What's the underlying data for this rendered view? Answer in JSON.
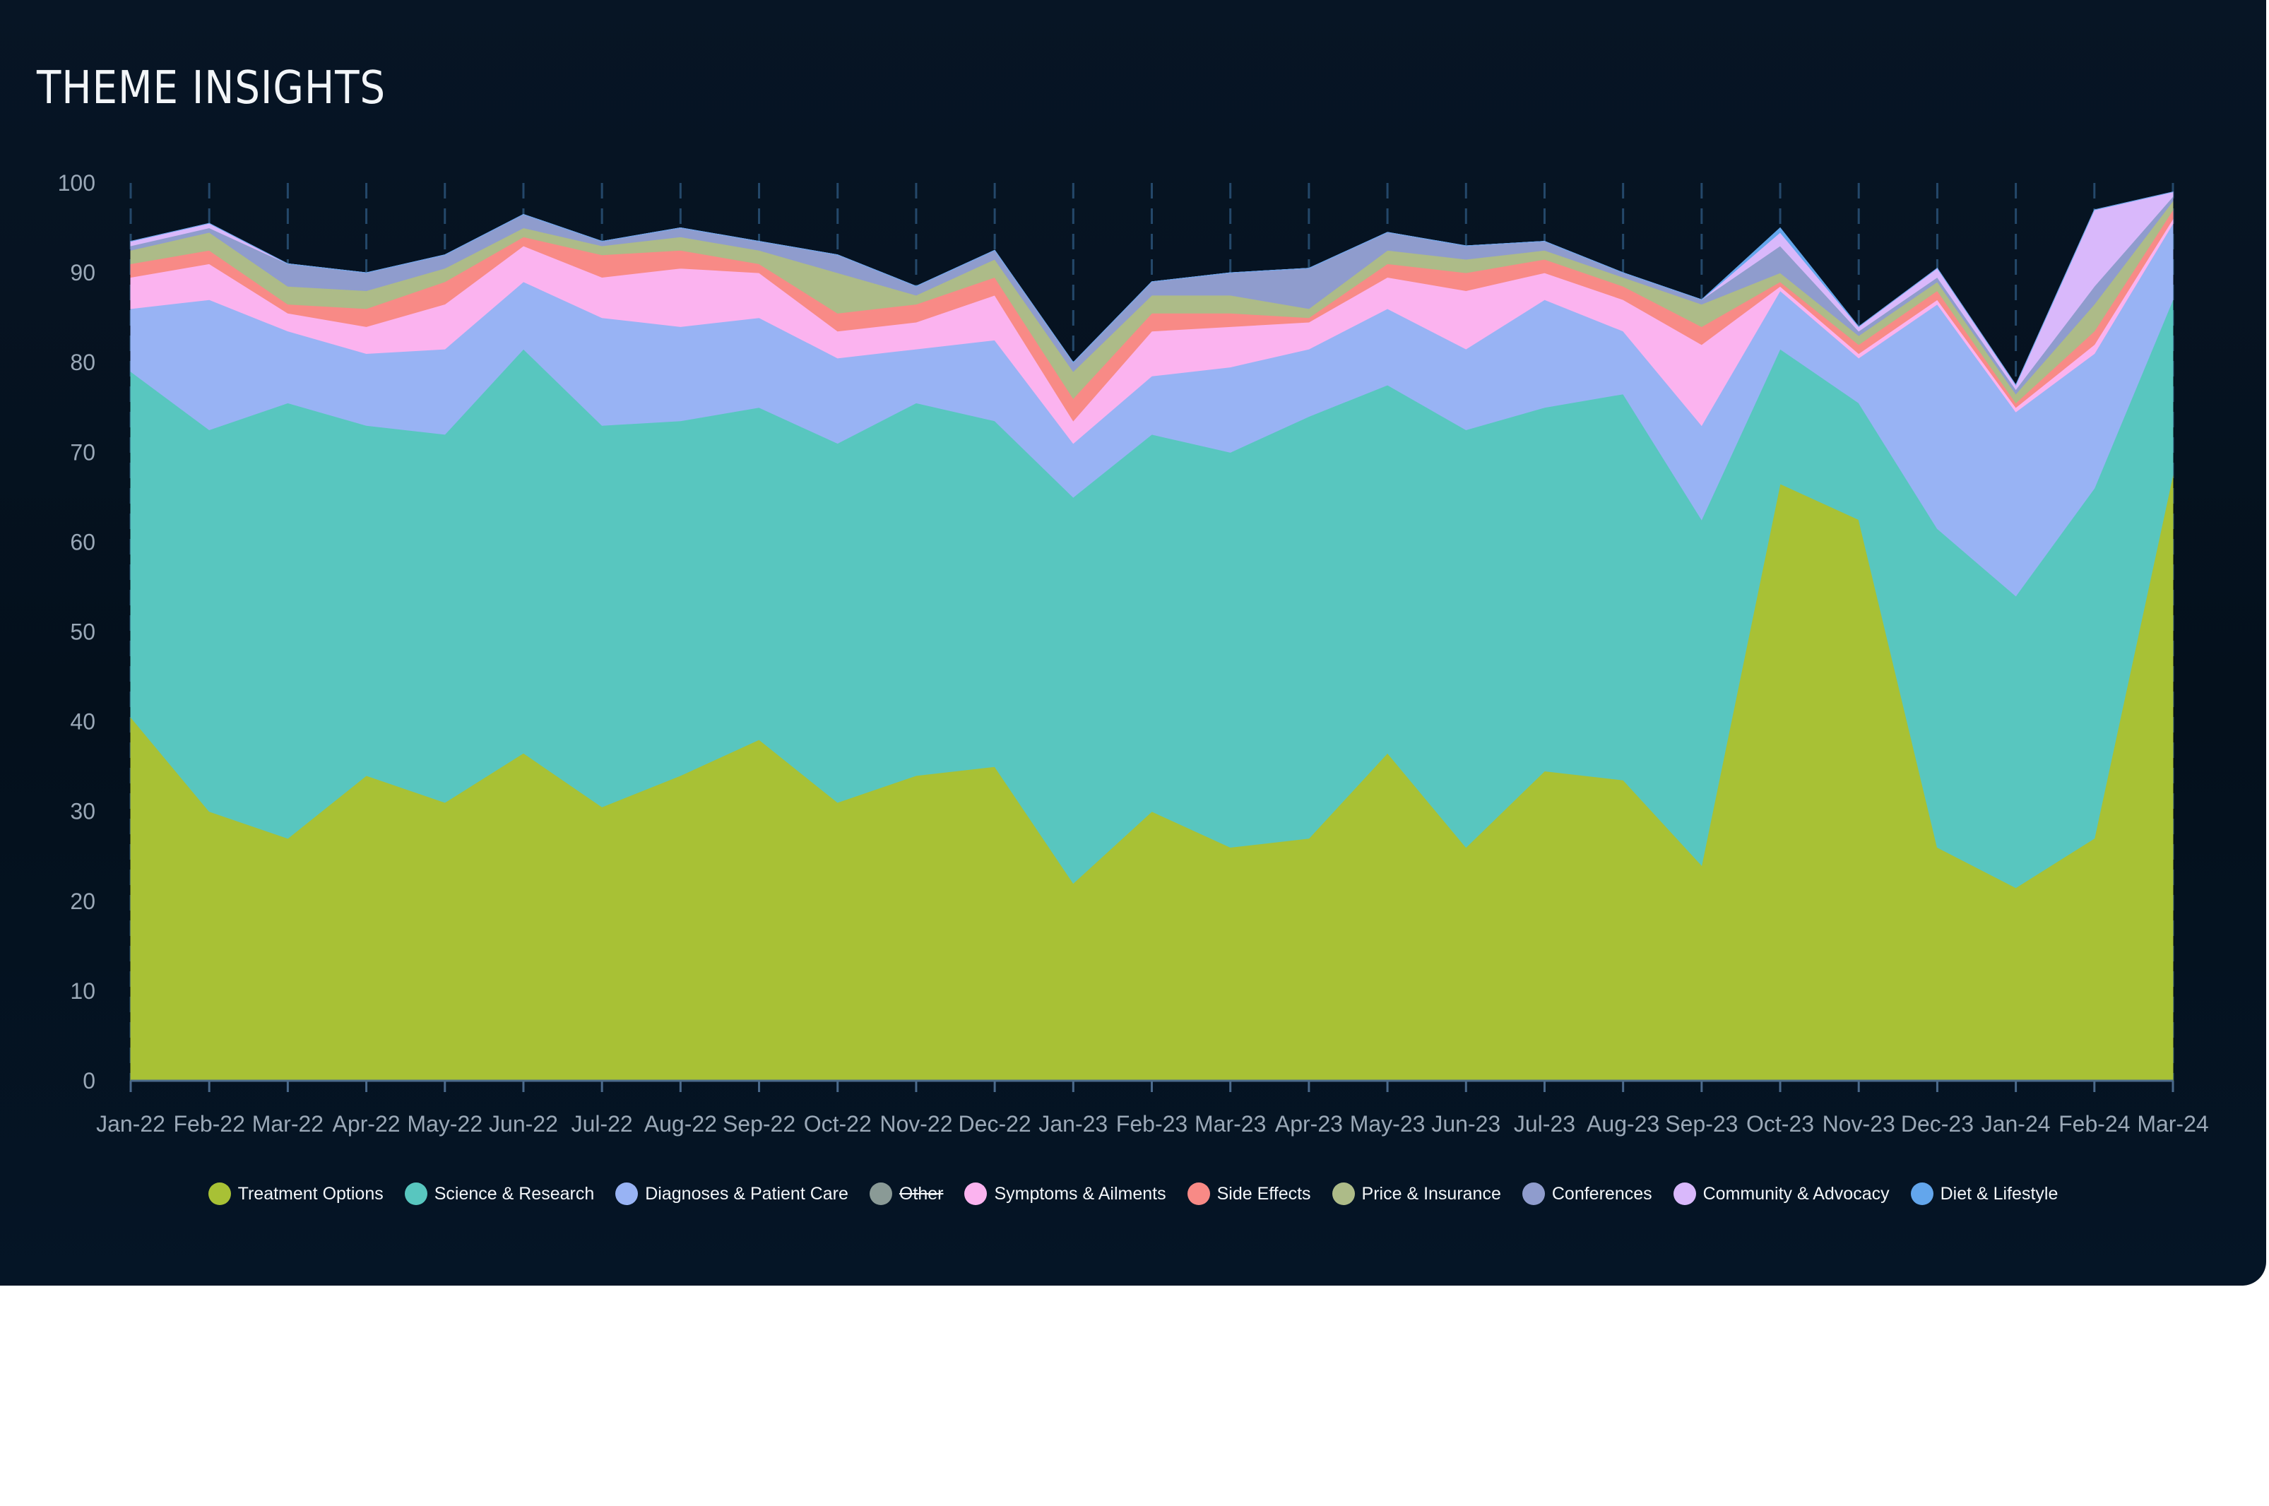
{
  "header": {
    "title": "THEME INSIGHTS"
  },
  "colors": {
    "background": "#04101c",
    "grid": "#24486a",
    "tick_text": "#9aa8b7",
    "legend_text": "#f2f5f8"
  },
  "chart_data": {
    "type": "area",
    "stacked": true,
    "title": "THEME INSIGHTS",
    "xlabel": "",
    "ylabel": "",
    "ylim": [
      0,
      100
    ],
    "yticks": [
      0,
      10,
      20,
      30,
      40,
      50,
      60,
      70,
      80,
      90,
      100
    ],
    "grid": "vertical dashed lines at each month",
    "legend_position": "bottom-center",
    "categories": [
      "Jan-22",
      "Feb-22",
      "Mar-22",
      "Apr-22",
      "May-22",
      "Jun-22",
      "Jul-22",
      "Aug-22",
      "Sep-22",
      "Oct-22",
      "Nov-22",
      "Dec-22",
      "Jan-23",
      "Feb-23",
      "Mar-23",
      "Apr-23",
      "May-23",
      "Jun-23",
      "Jul-23",
      "Aug-23",
      "Sep-23",
      "Oct-23",
      "Nov-23",
      "Dec-23",
      "Jan-24",
      "Feb-24",
      "Mar-24"
    ],
    "series": [
      {
        "name": "Treatment Options",
        "color": "#a8c135",
        "visible": true,
        "values": [
          40.5,
          30,
          27,
          34,
          31,
          36.5,
          30.5,
          34,
          38,
          31,
          34,
          35,
          22,
          30,
          26,
          27,
          36.5,
          26,
          34.5,
          33.5,
          24,
          66.5,
          62.5,
          26,
          21.5,
          27,
          67.5
        ]
      },
      {
        "name": "Science & Research",
        "color": "#58c6bf",
        "visible": true,
        "values": [
          38.5,
          42.5,
          48.5,
          39,
          41,
          45,
          42.5,
          39.5,
          37,
          40,
          41.5,
          38.5,
          43,
          42,
          44,
          47,
          41,
          46.5,
          40.5,
          43,
          38.5,
          15,
          13,
          35.5,
          32.5,
          39,
          19.5
        ]
      },
      {
        "name": "Diagnoses & Patient Care",
        "color": "#98b3f4",
        "visible": true,
        "values": [
          7,
          14.5,
          8,
          8,
          9.5,
          7.5,
          12,
          10.5,
          10,
          9.5,
          6,
          9,
          6,
          6.5,
          9.5,
          7.5,
          8.5,
          9,
          12,
          7,
          10.5,
          6.5,
          5,
          25,
          20.5,
          15,
          8.5
        ]
      },
      {
        "name": "Other",
        "color": "#8a9a96",
        "visible": false,
        "values": [
          0,
          0,
          0,
          0,
          0,
          0,
          0,
          0,
          0,
          0,
          0,
          0,
          0,
          0,
          0,
          0,
          0,
          0,
          0,
          0,
          0,
          0,
          0,
          0,
          0,
          0,
          0
        ]
      },
      {
        "name": "Symptoms & Ailments",
        "color": "#fbb3ef",
        "visible": true,
        "values": [
          3.5,
          4,
          2,
          3,
          5,
          4,
          4.5,
          6.5,
          5,
          3,
          3,
          5,
          2.5,
          5,
          4.5,
          3,
          3.5,
          6.5,
          3,
          3.5,
          9,
          0.5,
          0.5,
          0.5,
          0.5,
          1,
          0.5
        ]
      },
      {
        "name": "Side Effects",
        "color": "#f88a86",
        "visible": true,
        "values": [
          1.5,
          1.5,
          1,
          2,
          2.5,
          1,
          2.5,
          2,
          1,
          2,
          2,
          2,
          2.5,
          2,
          1.5,
          0.5,
          1.5,
          2,
          1.5,
          1.5,
          2,
          0.5,
          1,
          1,
          0.5,
          1.5,
          1
        ]
      },
      {
        "name": "Price & Insurance",
        "color": "#adbb88",
        "visible": true,
        "values": [
          1.5,
          2,
          2,
          2,
          1.5,
          1,
          1,
          1.5,
          1.5,
          4.5,
          1,
          2,
          3,
          2,
          2,
          1,
          1.5,
          1.5,
          1,
          1,
          2.5,
          1,
          1,
          1,
          1,
          3,
          1
        ]
      },
      {
        "name": "Conferences",
        "color": "#8f9ccd",
        "visible": true,
        "values": [
          0.5,
          0.5,
          2.5,
          2,
          1.5,
          1.5,
          0.5,
          1,
          1,
          2,
          1,
          1,
          1,
          1.5,
          2.5,
          4.5,
          2,
          1.5,
          1,
          0.5,
          0.5,
          3,
          0.5,
          0.5,
          0.5,
          2,
          0.5
        ]
      },
      {
        "name": "Community & Advocacy",
        "color": "#d9b8fb",
        "visible": true,
        "values": [
          0.5,
          0.5,
          0,
          0,
          0,
          0,
          0,
          0,
          0,
          0,
          0,
          0,
          0,
          0,
          0,
          0,
          0,
          0,
          0,
          0,
          0,
          1.5,
          0.5,
          1,
          0.5,
          8.5,
          0.5
        ]
      },
      {
        "name": "Diet & Lifestyle",
        "color": "#63a6ec",
        "visible": true,
        "values": [
          0,
          0,
          0,
          0,
          0,
          0,
          0,
          0,
          0,
          0,
          0,
          0,
          0,
          0,
          0,
          0,
          0,
          0,
          0,
          0,
          0,
          0.5,
          0,
          0,
          0,
          0,
          0
        ]
      }
    ]
  }
}
